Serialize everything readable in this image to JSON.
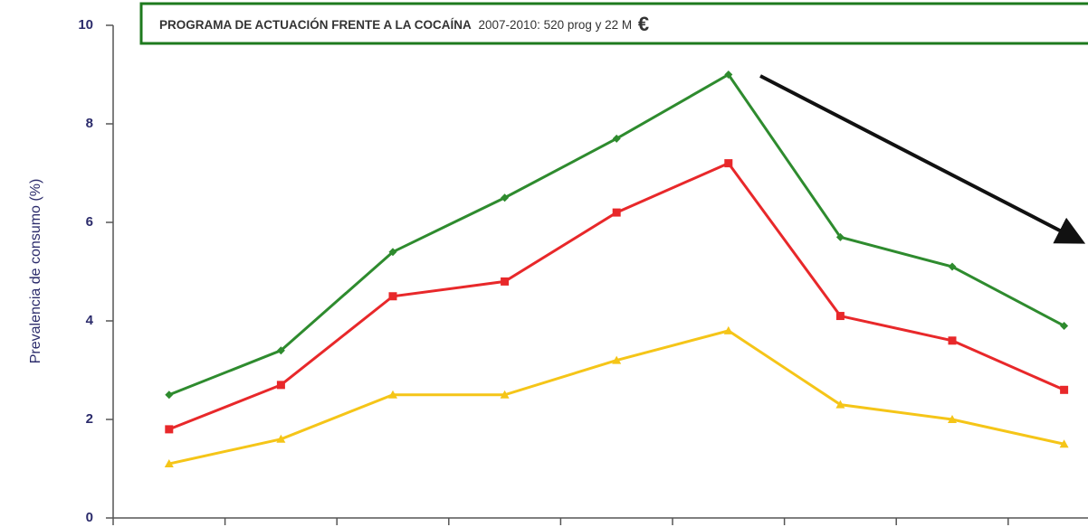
{
  "chart_data": {
    "type": "line",
    "y_label": "Prevalencia de consumo (%)",
    "annotation": {
      "bold": "PROGRAMA DE ACTUACIÓN FRENTE A LA COCAÍNA",
      "normal": "2007-2010:  520 prog y 22 M",
      "symbol": "€"
    },
    "categories": [
      null,
      null,
      null,
      null,
      null,
      null,
      null,
      null,
      null
    ],
    "series": [
      {
        "color": "#2e8b2e",
        "marker": "diamond",
        "values": [
          2.5,
          3.4,
          5.4,
          6.5,
          7.7,
          9.0,
          5.7,
          5.1,
          3.9
        ]
      },
      {
        "color": "#e8282a",
        "marker": "square",
        "values": [
          1.8,
          2.7,
          4.5,
          4.8,
          6.2,
          7.2,
          4.1,
          3.6,
          2.6
        ]
      },
      {
        "color": "#f5c518",
        "marker": "triangle",
        "values": [
          1.1,
          1.6,
          2.5,
          2.5,
          3.2,
          3.8,
          2.3,
          2.0,
          1.5
        ]
      }
    ],
    "ylim": [
      0,
      10
    ],
    "yticks": [
      0,
      2,
      4,
      6,
      8,
      10
    ]
  }
}
